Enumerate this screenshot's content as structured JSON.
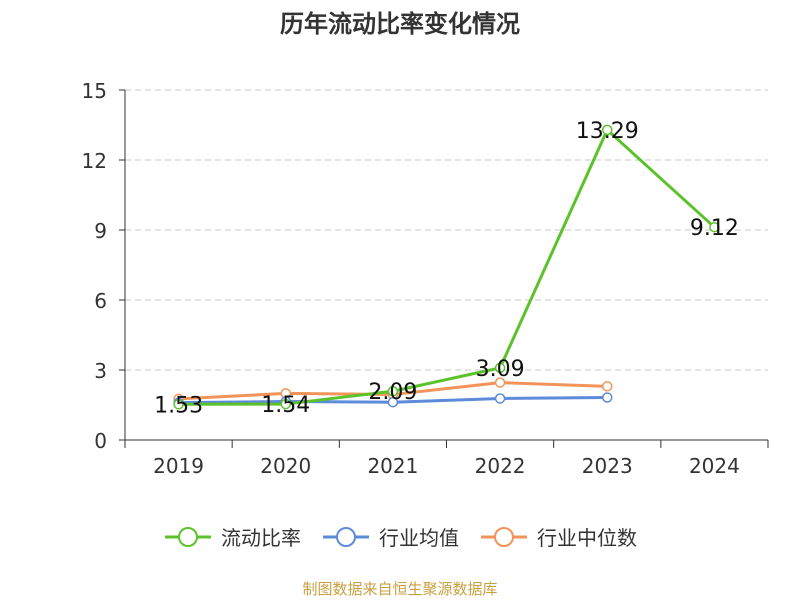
{
  "title": "历年流动比率变化情况",
  "source": "制图数据来自恒生聚源数据库",
  "chart_data": {
    "type": "line",
    "title": "历年流动比率变化情况",
    "categories": [
      "2019",
      "2020",
      "2021",
      "2022",
      "2023",
      "2024"
    ],
    "ylim": [
      0,
      15
    ],
    "yticks": [
      0,
      3,
      6,
      9,
      12,
      15
    ],
    "grid": true,
    "legend_position": "bottom",
    "series": [
      {
        "name": "流动比率",
        "color": "#5cc22c",
        "values": [
          1.53,
          1.54,
          2.09,
          3.09,
          13.29,
          9.12
        ],
        "labels": [
          "1.53",
          "1.54",
          "2.09",
          "3.09",
          "13.29",
          "9.12"
        ]
      },
      {
        "name": "行业均值",
        "color": "#5b8bd9",
        "values": [
          1.6,
          1.65,
          1.62,
          1.78,
          1.82,
          null
        ]
      },
      {
        "name": "行业中位数",
        "color": "#f2945a",
        "values": [
          1.76,
          2.0,
          1.95,
          2.46,
          2.3,
          null
        ]
      }
    ]
  }
}
